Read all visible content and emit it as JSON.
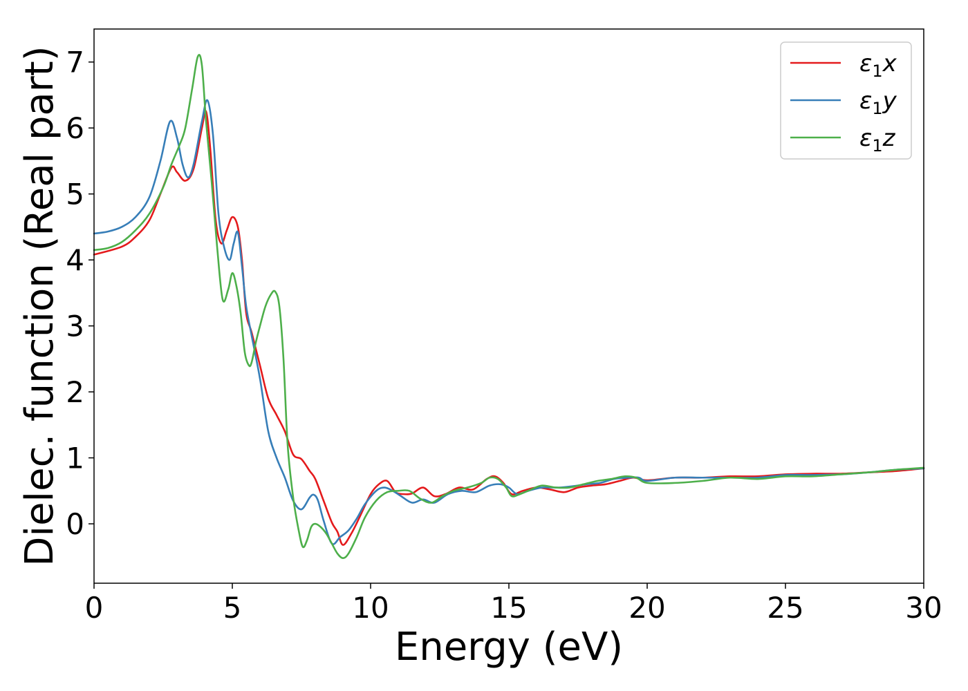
{
  "chart_data": {
    "type": "line",
    "title": "",
    "xlabel": "Energy (eV)",
    "ylabel": "Dielec. function (Real part)",
    "xlim": [
      0,
      30
    ],
    "ylim": [
      -0.9,
      7.5
    ],
    "xticks": [
      0,
      5,
      10,
      15,
      20,
      25,
      30
    ],
    "yticks": [
      0,
      1,
      2,
      3,
      4,
      5,
      6,
      7
    ],
    "grid": false,
    "legend_position": "top-right",
    "series": [
      {
        "name": "ε1x",
        "legend": {
          "base": "ε",
          "sub": "1",
          "suffix": "x"
        },
        "color": "#e41a1c",
        "x": [
          0,
          1,
          1.5,
          2,
          2.4,
          2.8,
          3.0,
          3.3,
          3.6,
          3.9,
          4.05,
          4.2,
          4.4,
          4.6,
          4.8,
          5.0,
          5.2,
          5.35,
          5.5,
          5.7,
          6.0,
          6.3,
          6.6,
          6.9,
          7.2,
          7.5,
          7.8,
          8.0,
          8.3,
          8.6,
          8.8,
          9.0,
          9.3,
          9.6,
          10.0,
          10.3,
          10.6,
          10.9,
          11.2,
          11.5,
          11.9,
          12.3,
          12.7,
          13.2,
          13.7,
          14.2,
          14.5,
          14.8,
          15.1,
          15.5,
          16.0,
          16.5,
          17.0,
          17.5,
          18.0,
          18.5,
          19.0,
          19.5,
          20.0,
          21.0,
          22.0,
          23.0,
          24.0,
          25.0,
          26.0,
          27.0,
          28.0,
          29.0,
          30.0
        ],
        "y": [
          4.08,
          4.2,
          4.35,
          4.6,
          5.0,
          5.4,
          5.33,
          5.2,
          5.38,
          6.0,
          6.25,
          5.7,
          4.6,
          4.25,
          4.45,
          4.65,
          4.5,
          4.0,
          3.2,
          2.9,
          2.4,
          1.9,
          1.65,
          1.4,
          1.05,
          0.98,
          0.8,
          0.68,
          0.35,
          0.02,
          -0.12,
          -0.32,
          -0.15,
          0.1,
          0.45,
          0.6,
          0.65,
          0.48,
          0.45,
          0.46,
          0.55,
          0.42,
          0.45,
          0.55,
          0.52,
          0.68,
          0.72,
          0.62,
          0.45,
          0.5,
          0.55,
          0.52,
          0.48,
          0.55,
          0.58,
          0.6,
          0.65,
          0.7,
          0.66,
          0.7,
          0.7,
          0.72,
          0.72,
          0.75,
          0.76,
          0.76,
          0.78,
          0.8,
          0.84
        ]
      },
      {
        "name": "ε1y",
        "legend": {
          "base": "ε",
          "sub": "1",
          "suffix": "y"
        },
        "color": "#377eb8",
        "x": [
          0,
          0.5,
          1,
          1.5,
          2,
          2.4,
          2.75,
          3.0,
          3.2,
          3.4,
          3.6,
          3.9,
          4.1,
          4.3,
          4.5,
          4.7,
          4.9,
          5.05,
          5.2,
          5.35,
          5.5,
          5.7,
          6.0,
          6.3,
          6.6,
          6.9,
          7.2,
          7.5,
          7.8,
          7.95,
          8.1,
          8.3,
          8.6,
          8.9,
          9.2,
          9.5,
          9.8,
          10.2,
          10.5,
          10.8,
          11.1,
          11.5,
          11.9,
          12.3,
          12.8,
          13.3,
          13.8,
          14.3,
          14.7,
          15.0,
          15.3,
          15.7,
          16.2,
          16.8,
          17.3,
          17.8,
          18.3,
          18.8,
          19.3,
          19.7,
          20.0,
          21.0,
          22.0,
          23.0,
          24.0,
          25.0,
          26.0,
          27.0,
          28.0,
          29.0,
          30.0
        ],
        "y": [
          4.4,
          4.43,
          4.5,
          4.65,
          4.95,
          5.5,
          6.1,
          5.85,
          5.45,
          5.25,
          5.45,
          6.1,
          6.42,
          5.9,
          4.7,
          4.2,
          4.0,
          4.25,
          4.42,
          3.9,
          3.3,
          2.85,
          2.2,
          1.4,
          1.0,
          0.7,
          0.35,
          0.22,
          0.4,
          0.44,
          0.35,
          0.05,
          -0.3,
          -0.2,
          -0.1,
          0.08,
          0.3,
          0.5,
          0.55,
          0.5,
          0.42,
          0.32,
          0.37,
          0.32,
          0.45,
          0.5,
          0.48,
          0.58,
          0.6,
          0.55,
          0.45,
          0.5,
          0.55,
          0.55,
          0.57,
          0.6,
          0.62,
          0.68,
          0.7,
          0.7,
          0.65,
          0.7,
          0.7,
          0.7,
          0.7,
          0.74,
          0.74,
          0.75,
          0.78,
          0.82,
          0.84
        ]
      },
      {
        "name": "ε1z",
        "legend": {
          "base": "ε",
          "sub": "1",
          "suffix": "z"
        },
        "color": "#4daf4a",
        "x": [
          0,
          0.5,
          1,
          1.5,
          2,
          2.5,
          2.8,
          3.1,
          3.3,
          3.55,
          3.75,
          3.9,
          4.05,
          4.25,
          4.45,
          4.65,
          4.85,
          5.0,
          5.15,
          5.3,
          5.45,
          5.6,
          5.7,
          5.85,
          6.0,
          6.2,
          6.4,
          6.55,
          6.7,
          6.85,
          7.0,
          7.2,
          7.4,
          7.55,
          7.7,
          7.85,
          8.0,
          8.2,
          8.4,
          8.6,
          8.8,
          9.0,
          9.2,
          9.5,
          9.8,
          10.2,
          10.6,
          11.0,
          11.4,
          11.8,
          12.2,
          12.6,
          13.0,
          13.5,
          14.0,
          14.3,
          14.6,
          14.9,
          15.1,
          15.4,
          15.8,
          16.2,
          16.7,
          17.2,
          17.7,
          18.2,
          18.7,
          19.2,
          19.6,
          20.0,
          21.0,
          22.0,
          23.0,
          24.0,
          25.0,
          26.0,
          27.0,
          28.0,
          29.0,
          30.0
        ],
        "y": [
          4.15,
          4.18,
          4.27,
          4.45,
          4.7,
          5.1,
          5.45,
          5.75,
          6.0,
          6.6,
          7.08,
          6.95,
          6.1,
          5.2,
          4.2,
          3.4,
          3.55,
          3.8,
          3.6,
          3.2,
          2.6,
          2.4,
          2.45,
          2.75,
          3.0,
          3.3,
          3.48,
          3.52,
          3.3,
          2.5,
          1.2,
          0.4,
          -0.1,
          -0.35,
          -0.25,
          -0.05,
          0.0,
          -0.05,
          -0.15,
          -0.3,
          -0.45,
          -0.52,
          -0.45,
          -0.2,
          0.1,
          0.35,
          0.48,
          0.5,
          0.5,
          0.38,
          0.32,
          0.42,
          0.5,
          0.55,
          0.62,
          0.7,
          0.68,
          0.55,
          0.42,
          0.45,
          0.52,
          0.58,
          0.55,
          0.55,
          0.6,
          0.65,
          0.68,
          0.72,
          0.7,
          0.62,
          0.62,
          0.65,
          0.7,
          0.68,
          0.72,
          0.72,
          0.75,
          0.78,
          0.82,
          0.85
        ]
      }
    ]
  }
}
